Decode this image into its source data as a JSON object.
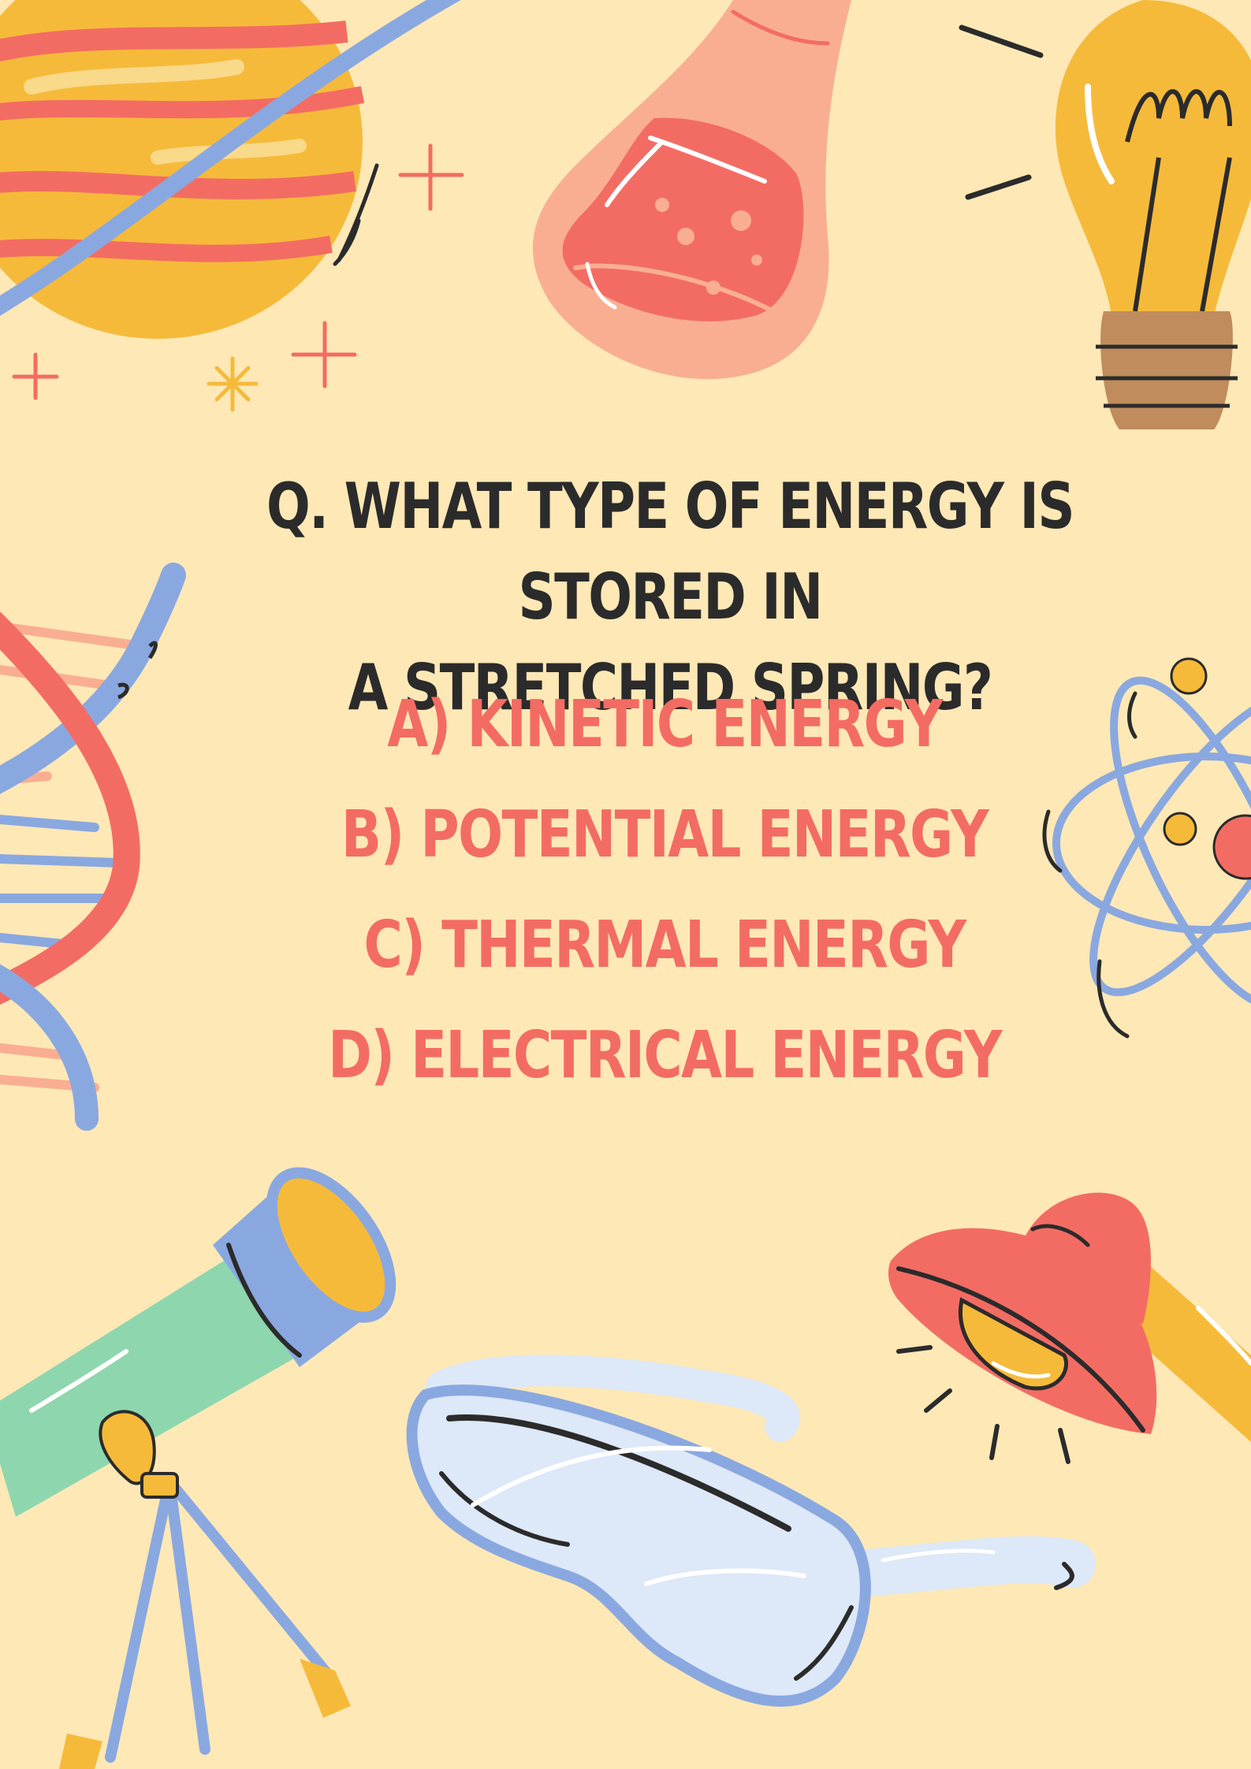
{
  "question": {
    "line1": "Q. WHAT TYPE OF ENERGY IS STORED IN",
    "line2": "A STRETCHED SPRING?"
  },
  "options": [
    "A) KINETIC ENERGY",
    "B) POTENTIAL ENERGY",
    "C) THERMAL ENERGY",
    "D) ELECTRICAL ENERGY"
  ],
  "colors": {
    "background": "#FDE8B6",
    "question_text": "#2B2B2B",
    "option_text": "#F36C63"
  },
  "illustrations": [
    "planet-icon",
    "flask-icon",
    "lightbulb-icon",
    "dna-icon",
    "atom-icon",
    "telescope-icon",
    "goggles-icon",
    "lamp-icon"
  ]
}
